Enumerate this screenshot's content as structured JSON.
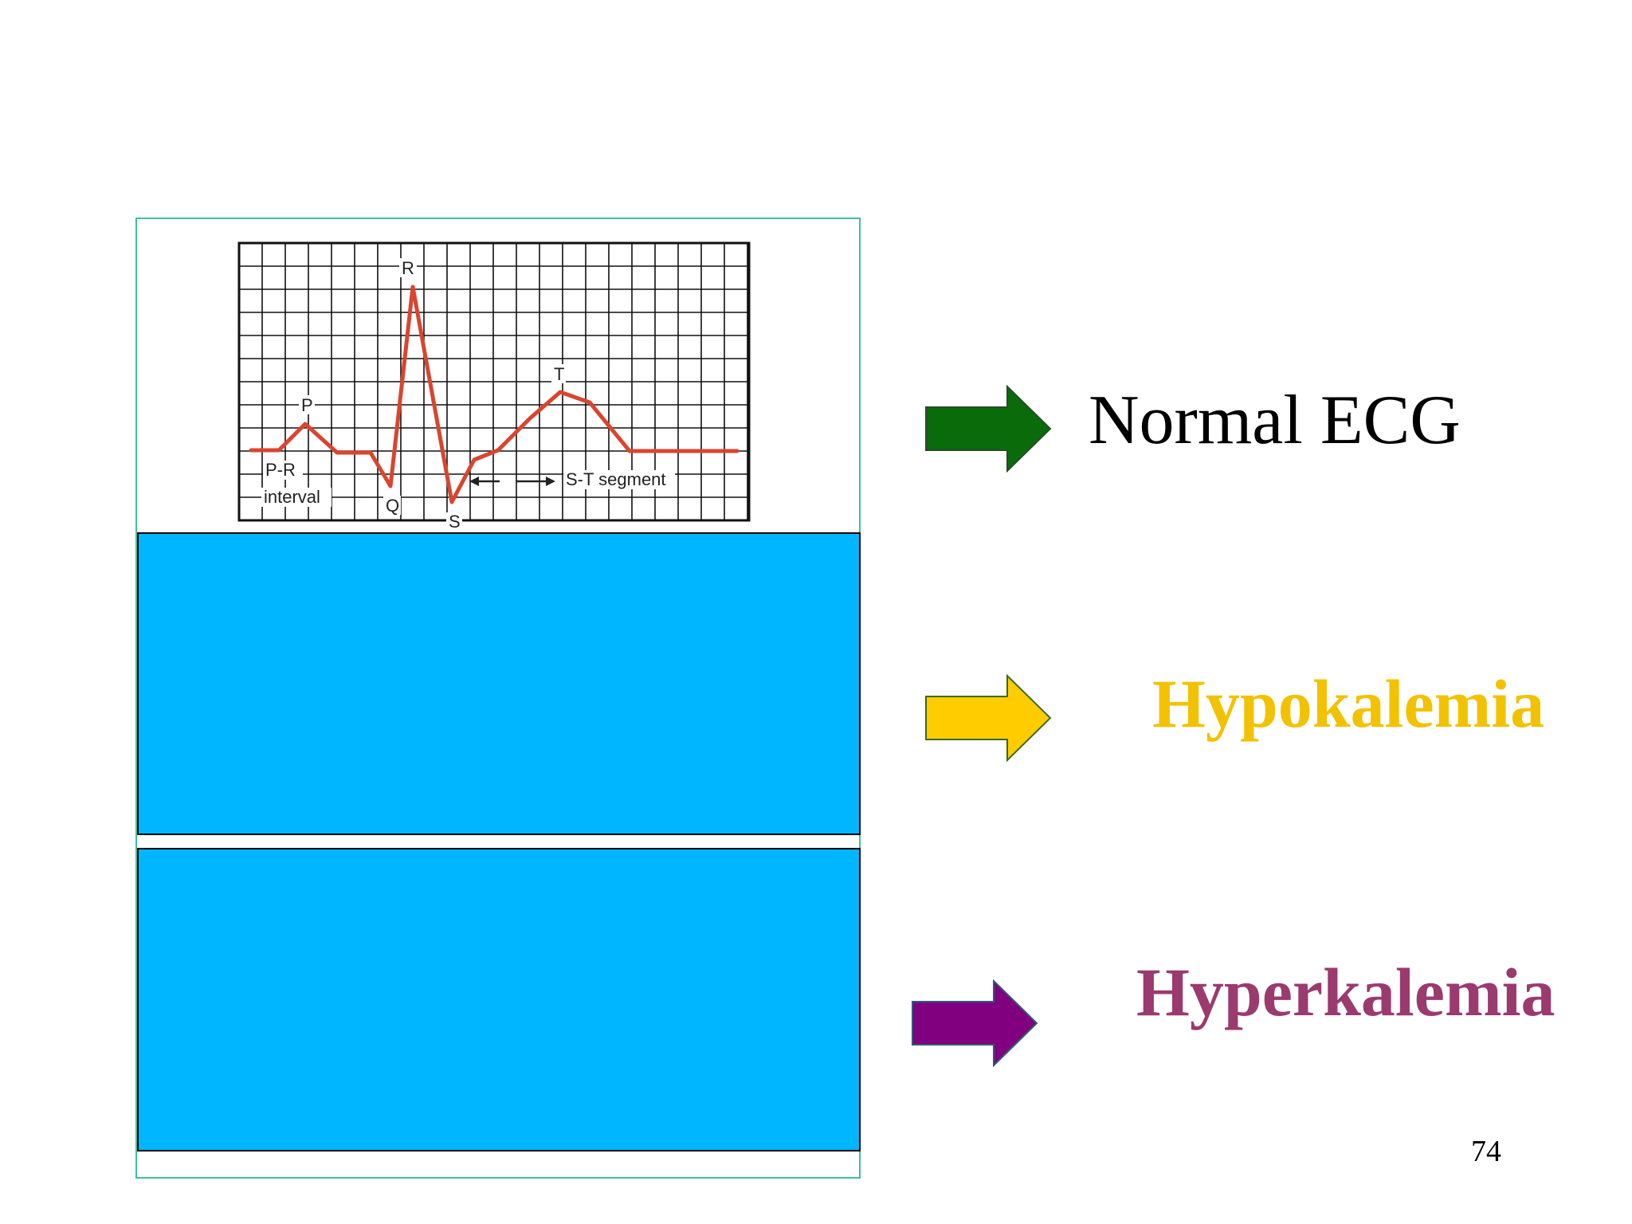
{
  "ecg": {
    "labels": {
      "p": "P",
      "q": "Q",
      "r": "R",
      "s": "S",
      "t": "T",
      "pr_line1": "P-R",
      "pr_line2": "interval",
      "st_segment": "S-T segment"
    },
    "trace_color": "#d9452f",
    "grid_color": "#111111"
  },
  "rows": [
    {
      "label": "Normal ECG",
      "color": "#000000",
      "arrow_color": "#0a6b0a"
    },
    {
      "label": "Hypokalemia",
      "color": "#f2c200",
      "arrow_color": "#ffcc00"
    },
    {
      "label": "Hyperkalemia",
      "color": "#9b3a6e",
      "arrow_color": "#800080"
    }
  ],
  "cover_color": "#00b6ff",
  "page_number": "74"
}
